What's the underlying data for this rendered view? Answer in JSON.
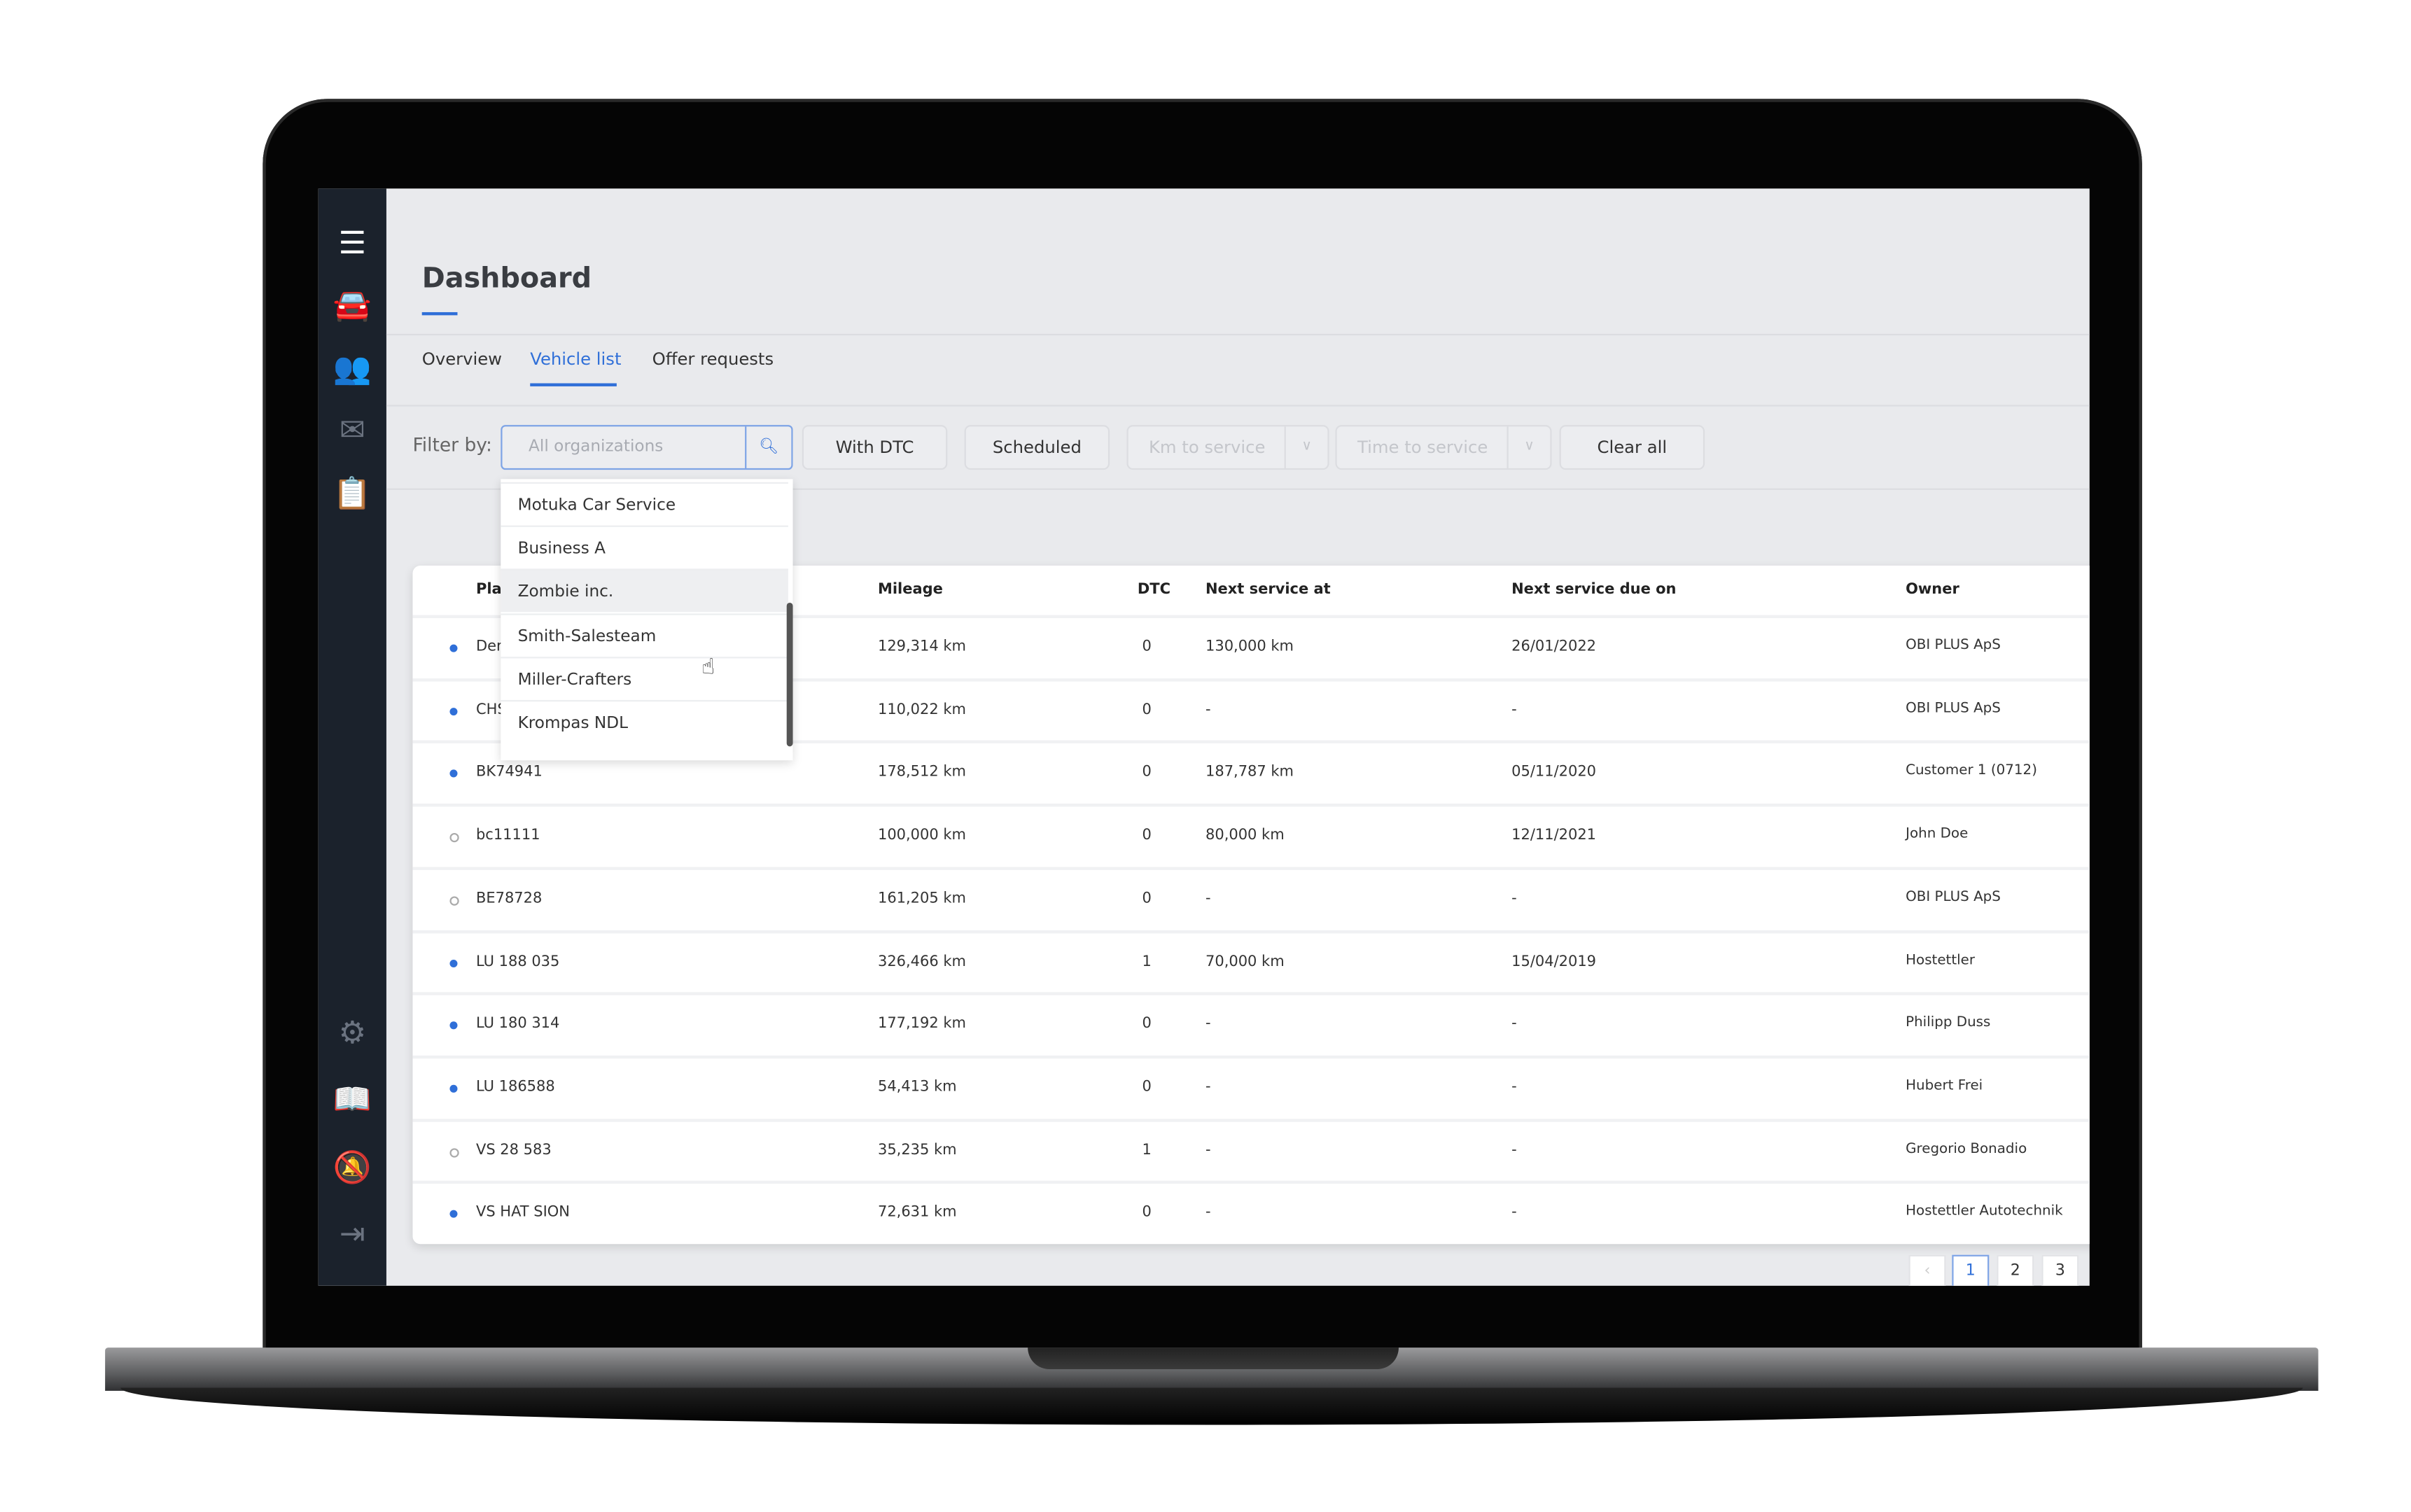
{
  "sidebar": {
    "icons": [
      "menu-icon",
      "car-add-icon",
      "users-icon",
      "inbox-icon",
      "clipboard-icon",
      "gear-icon",
      "book-icon",
      "bell-off-icon",
      "logout-icon"
    ]
  },
  "header": {
    "title": "Dashboard"
  },
  "tabs": [
    {
      "label": "Overview"
    },
    {
      "label": "Vehicle list",
      "active": true
    },
    {
      "label": "Offer requests"
    }
  ],
  "filters": {
    "label": "Filter by:",
    "organization_placeholder": "All organizations",
    "with_dtc": "With DTC",
    "scheduled": "Scheduled",
    "km_to_service": "Km to service",
    "time_to_service": "Time to service",
    "clear_all": "Clear all"
  },
  "dropdown": {
    "items": [
      "Motuka Car Service",
      "Business A",
      "Zombie inc.",
      "Smith-Salesteam",
      "Miller-Crafters",
      "Krompas NDL"
    ],
    "highlighted": "Zombie inc."
  },
  "table": {
    "columns": [
      "Plate",
      "Mileage",
      "DTC",
      "Next service at",
      "Next service due on",
      "Owner"
    ],
    "rows": [
      {
        "online": true,
        "plate": "Der",
        "mileage": "129,314 km",
        "dtc": "0",
        "next_at": "130,000 km",
        "due_on": "26/01/2022",
        "owner": "OBI PLUS ApS"
      },
      {
        "online": true,
        "plate": "CHS",
        "mileage": "110,022 km",
        "dtc": "0",
        "next_at": "-",
        "due_on": "-",
        "owner": "OBI PLUS ApS"
      },
      {
        "online": true,
        "plate": "BK74941",
        "mileage": "178,512 km",
        "dtc": "0",
        "next_at": "187,787 km",
        "due_on": "05/11/2020",
        "owner": "Customer 1 (0712)"
      },
      {
        "online": false,
        "plate": "bc11111",
        "mileage": "100,000 km",
        "dtc": "0",
        "next_at": "80,000 km",
        "due_on": "12/11/2021",
        "owner": "John Doe"
      },
      {
        "online": false,
        "plate": "BE78728",
        "mileage": "161,205 km",
        "dtc": "0",
        "next_at": "-",
        "due_on": "-",
        "owner": "OBI PLUS ApS"
      },
      {
        "online": true,
        "plate": "LU 188 035",
        "mileage": "326,466 km",
        "dtc": "1",
        "next_at": "70,000 km",
        "due_on": "15/04/2019",
        "owner": "Hostettler"
      },
      {
        "online": true,
        "plate": "LU 180 314",
        "mileage": "177,192 km",
        "dtc": "0",
        "next_at": "-",
        "due_on": "-",
        "owner": "Philipp Duss"
      },
      {
        "online": true,
        "plate": "LU 186588",
        "mileage": "54,413 km",
        "dtc": "0",
        "next_at": "-",
        "due_on": "-",
        "owner": "Hubert Frei"
      },
      {
        "online": false,
        "plate": "VS 28 583",
        "mileage": "35,235 km",
        "dtc": "1",
        "next_at": "-",
        "due_on": "-",
        "owner": "Gregorio Bonadio"
      },
      {
        "online": true,
        "plate": "VS HAT SION",
        "mileage": "72,631 km",
        "dtc": "0",
        "next_at": "-",
        "due_on": "-",
        "owner": "Hostettler Autotechnik"
      }
    ]
  },
  "pagination": {
    "prev": "‹",
    "pages": [
      "1",
      "2",
      "3"
    ],
    "current": "1"
  },
  "colors": {
    "accent": "#2f6fd8",
    "sidebar": "#1b222c",
    "background": "#e9eaed"
  }
}
